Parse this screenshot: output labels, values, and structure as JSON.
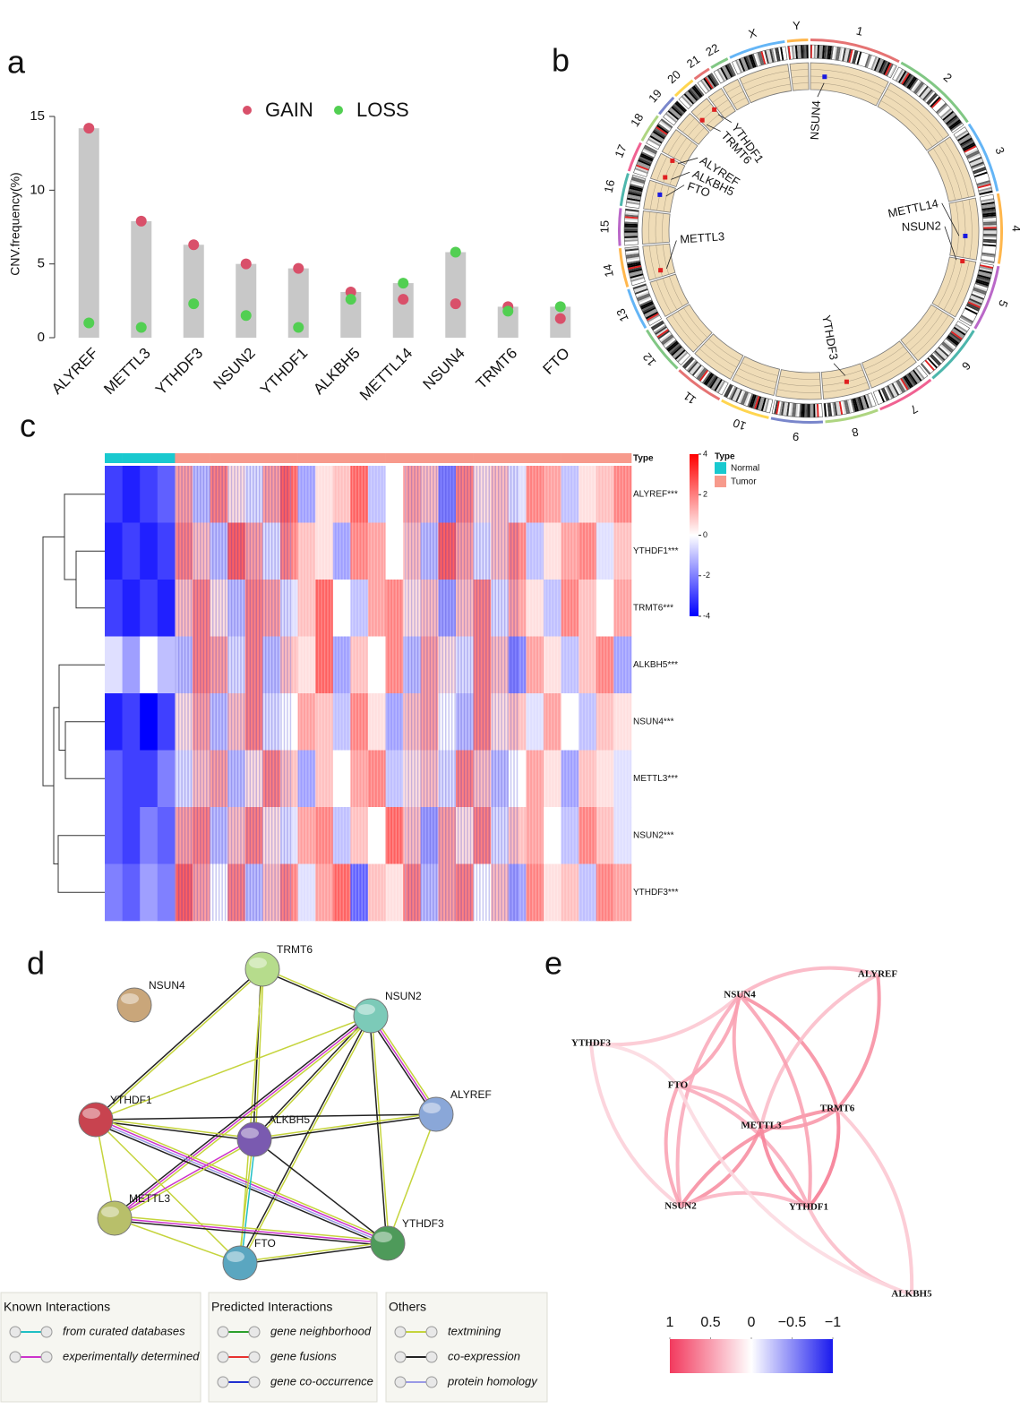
{
  "panel_labels": [
    "a",
    "b",
    "c",
    "d",
    "e"
  ],
  "chart_data": {
    "type": "bar",
    "y_label": "CNV.frequency(%)",
    "categories": [
      "ALYREF",
      "METTL3",
      "YTHDF3",
      "NSUN2",
      "YTHDF1",
      "ALKBH5",
      "METTL14",
      "NSUN4",
      "TRMT6",
      "FTO"
    ],
    "series": [
      {
        "name": "GAIN",
        "color": "#d9506a",
        "values": [
          14.2,
          7.9,
          6.3,
          5.0,
          4.7,
          3.1,
          2.6,
          2.3,
          2.1,
          1.3
        ]
      },
      {
        "name": "LOSS",
        "color": "#52cf52",
        "values": [
          1.0,
          0.7,
          2.3,
          1.5,
          0.7,
          2.6,
          3.7,
          5.8,
          1.8,
          2.1
        ]
      }
    ],
    "bar_color": "#c8c8c8",
    "ylim": [
      0,
      15
    ],
    "yticks": [
      0,
      5,
      10,
      15
    ]
  },
  "circos": {
    "chromosomes": [
      "1",
      "2",
      "3",
      "4",
      "5",
      "6",
      "7",
      "8",
      "9",
      "10",
      "11",
      "12",
      "13",
      "14",
      "15",
      "16",
      "17",
      "18",
      "19",
      "20",
      "21",
      "22",
      "X",
      "Y"
    ],
    "track_color": "#efdcb7",
    "genes": [
      {
        "label": "NSUN4",
        "color": "#1a1ae0"
      },
      {
        "label": "METTL14",
        "color": "#1a1ae0"
      },
      {
        "label": "NSUN2",
        "color": "#e02020"
      },
      {
        "label": "YTHDF3",
        "color": "#e02020"
      },
      {
        "label": "METTL3",
        "color": "#e02020"
      },
      {
        "label": "FTO",
        "color": "#1a1ae0"
      },
      {
        "label": "ALKBH5",
        "color": "#e02020"
      },
      {
        "label": "ALYREF",
        "color": "#e02020"
      },
      {
        "label": "TRMT6",
        "color": "#e02020"
      },
      {
        "label": "YTHDF1",
        "color": "#e02020"
      }
    ]
  },
  "heatmap": {
    "row_labels": [
      "ALYREF***",
      "YTHDF1***",
      "TRMT6***",
      "ALKBH5***",
      "NSUN4***",
      "METTL3***",
      "NSUN2***",
      "YTHDF3***"
    ],
    "annotation_label": "Type",
    "legend_title": "Type",
    "types": [
      {
        "name": "Normal",
        "color": "#19c9cf"
      },
      {
        "name": "Tumor",
        "color": "#f79a8c"
      }
    ],
    "column_types": [
      0,
      0,
      0,
      0,
      1,
      1,
      1,
      1,
      1,
      1,
      1,
      1,
      1,
      1,
      1,
      1,
      1,
      1,
      1,
      1,
      1,
      1,
      1,
      1,
      1,
      1,
      1,
      1,
      1,
      1
    ],
    "matrix": [
      [
        -3,
        -3.5,
        -3,
        -2.5,
        1.5,
        -1,
        2,
        0.5,
        -0.5,
        1.5,
        2.5,
        -1.5,
        0.5,
        1,
        2.5,
        -1,
        0,
        1.5,
        1,
        -2,
        2,
        0.5,
        1,
        -0.5,
        2,
        1.5,
        -1,
        0.5,
        1,
        2
      ],
      [
        -3.5,
        -3,
        -3.5,
        -3,
        2,
        1,
        -1,
        2.5,
        1.5,
        -0.5,
        2,
        1,
        0.5,
        -1.5,
        2,
        1.5,
        0,
        1,
        -1,
        2.5,
        1.5,
        -0.5,
        1,
        2,
        -1,
        0.5,
        1.5,
        2,
        -0.5,
        1
      ],
      [
        -3,
        -3.5,
        -3,
        -3.5,
        1,
        2,
        0.5,
        -1,
        2,
        1.5,
        -0.5,
        1,
        2.5,
        0,
        -1,
        1.5,
        2,
        0.5,
        1,
        -1.5,
        1,
        2,
        -0.5,
        1.5,
        0.5,
        -1,
        2,
        1,
        0,
        1.5
      ],
      [
        -0.5,
        -1.5,
        0,
        -1,
        -1,
        2,
        1.5,
        -0.5,
        2,
        -1,
        1,
        0.5,
        2.5,
        -1.5,
        1,
        0,
        2,
        -1,
        1.5,
        0.5,
        -0.5,
        2,
        1,
        -2,
        1.5,
        0.5,
        -1,
        1,
        2,
        -1.5
      ],
      [
        -3.5,
        -3,
        -4,
        -3,
        0.5,
        1.5,
        -1,
        1,
        2,
        -0.5,
        0,
        1.5,
        1,
        -1,
        2,
        0.5,
        -1.5,
        1,
        1.5,
        0,
        -1,
        2,
        0.5,
        1,
        -0.5,
        1.5,
        0,
        -1,
        1,
        0.5
      ],
      [
        -2.5,
        -3,
        -3,
        -2,
        -0.5,
        1,
        1.5,
        -1,
        0.5,
        2,
        1,
        -1.5,
        1,
        0,
        1.5,
        2,
        -1,
        0.5,
        1,
        -0.5,
        2,
        1,
        -1,
        0,
        1.5,
        0.5,
        -1.5,
        1,
        0.5,
        -0.5
      ],
      [
        -2.5,
        -3,
        -2,
        -2.5,
        1.5,
        2,
        -1,
        1,
        2,
        0.5,
        -0.5,
        1.5,
        2,
        -1,
        1,
        0,
        2.5,
        1,
        -1.5,
        1.5,
        0.5,
        2,
        -0.5,
        1,
        1.5,
        0,
        -1,
        2,
        1,
        -0.5
      ],
      [
        -2,
        -2.5,
        -1.5,
        -2,
        2.5,
        1.5,
        0,
        2,
        -1,
        1,
        2,
        -0.5,
        1.5,
        2.5,
        -2.5,
        1,
        0.5,
        2,
        -1,
        1.5,
        2,
        0,
        1,
        -1.5,
        2,
        0.5,
        1,
        -1,
        2,
        1.5
      ]
    ],
    "colors": [
      "#0000ff",
      "#ffffff",
      "#ff0000"
    ],
    "lim": [
      -4,
      4
    ],
    "ticks": [
      4,
      2,
      0,
      -2,
      -4
    ]
  },
  "network": {
    "nodes": [
      {
        "label": "TRMT6",
        "color": "#b6dc8c"
      },
      {
        "label": "NSUN4",
        "color": "#c9a67a"
      },
      {
        "label": "NSUN2",
        "color": "#7ccab8"
      },
      {
        "label": "YTHDF1",
        "color": "#c8434f"
      },
      {
        "label": "ALKBH5",
        "color": "#7a5ab0"
      },
      {
        "label": "ALYREF",
        "color": "#8aa7d8"
      },
      {
        "label": "METTL3",
        "color": "#b8bf6a"
      },
      {
        "label": "FTO",
        "color": "#5aa6c0"
      },
      {
        "label": "YTHDF3",
        "color": "#4e9a5a"
      }
    ],
    "edges": [
      {
        "ends": [
          0,
          2
        ],
        "kinds": [
          5,
          6
        ]
      },
      {
        "ends": [
          0,
          3
        ],
        "kinds": [
          5,
          6
        ]
      },
      {
        "ends": [
          0,
          4
        ],
        "kinds": [
          5,
          6
        ]
      },
      {
        "ends": [
          0,
          7
        ],
        "kinds": [
          5
        ]
      },
      {
        "ends": [
          2,
          3
        ],
        "kinds": [
          5
        ]
      },
      {
        "ends": [
          2,
          4
        ],
        "kinds": [
          5,
          6
        ]
      },
      {
        "ends": [
          2,
          5
        ],
        "kinds": [
          5,
          1,
          6
        ]
      },
      {
        "ends": [
          2,
          6
        ],
        "kinds": [
          5,
          1,
          6
        ]
      },
      {
        "ends": [
          2,
          7
        ],
        "kinds": [
          5,
          6
        ]
      },
      {
        "ends": [
          2,
          8
        ],
        "kinds": [
          5,
          6
        ]
      },
      {
        "ends": [
          3,
          4
        ],
        "kinds": [
          5,
          6
        ]
      },
      {
        "ends": [
          3,
          5
        ],
        "kinds": [
          6
        ]
      },
      {
        "ends": [
          3,
          6
        ],
        "kinds": [
          5
        ]
      },
      {
        "ends": [
          3,
          7
        ],
        "kinds": [
          5
        ]
      },
      {
        "ends": [
          3,
          8
        ],
        "kinds": [
          5,
          1,
          7,
          6
        ]
      },
      {
        "ends": [
          4,
          5
        ],
        "kinds": [
          5,
          6
        ]
      },
      {
        "ends": [
          4,
          7
        ],
        "kinds": [
          0,
          5
        ]
      },
      {
        "ends": [
          4,
          6
        ],
        "kinds": [
          5,
          1
        ]
      },
      {
        "ends": [
          4,
          8
        ],
        "kinds": [
          6
        ]
      },
      {
        "ends": [
          5,
          8
        ],
        "kinds": [
          5
        ]
      },
      {
        "ends": [
          6,
          8
        ],
        "kinds": [
          5,
          1,
          6
        ]
      },
      {
        "ends": [
          6,
          7
        ],
        "kinds": [
          5
        ]
      },
      {
        "ends": [
          7,
          8
        ],
        "kinds": [
          5,
          6
        ]
      }
    ],
    "legend": [
      {
        "title": "Known Interactions",
        "items": [
          {
            "label": "from curated databases",
            "color": "#1fbfc4"
          },
          {
            "label": "experimentally determined",
            "color": "#cc33cc"
          }
        ]
      },
      {
        "title": "Predicted Interactions",
        "items": [
          {
            "label": "gene neighborhood",
            "color": "#2ca02c"
          },
          {
            "label": "gene fusions",
            "color": "#e8322f"
          },
          {
            "label": "gene co-occurrence",
            "color": "#2030d0"
          }
        ]
      },
      {
        "title": "Others",
        "items": [
          {
            "label": "textmining",
            "color": "#c5d43c"
          },
          {
            "label": "co-expression",
            "color": "#222222"
          },
          {
            "label": "protein homology",
            "color": "#9a9ae6"
          }
        ]
      }
    ]
  },
  "correlation_network": {
    "nodes": [
      "ALYREF",
      "NSUN4",
      "YTHDF3",
      "FTO",
      "METTL3",
      "TRMT6",
      "NSUN2",
      "YTHDF1",
      "ALKBH5"
    ],
    "edges": [
      {
        "ends": [
          1,
          0
        ],
        "value": 0.4
      },
      {
        "ends": [
          2,
          1
        ],
        "value": 0.3
      },
      {
        "ends": [
          2,
          3
        ],
        "value": 0.2
      },
      {
        "ends": [
          2,
          6
        ],
        "value": 0.25
      },
      {
        "ends": [
          1,
          3
        ],
        "value": 0.5
      },
      {
        "ends": [
          1,
          4
        ],
        "value": 0.5
      },
      {
        "ends": [
          1,
          5
        ],
        "value": 0.6
      },
      {
        "ends": [
          1,
          6
        ],
        "value": 0.45
      },
      {
        "ends": [
          0,
          5
        ],
        "value": 0.6
      },
      {
        "ends": [
          0,
          4
        ],
        "value": 0.35
      },
      {
        "ends": [
          3,
          4
        ],
        "value": 0.4
      },
      {
        "ends": [
          3,
          6
        ],
        "value": 0.5
      },
      {
        "ends": [
          3,
          7
        ],
        "value": 0.45
      },
      {
        "ends": [
          4,
          5
        ],
        "value": 0.55
      },
      {
        "ends": [
          4,
          6
        ],
        "value": 0.6
      },
      {
        "ends": [
          4,
          7
        ],
        "value": 0.65
      },
      {
        "ends": [
          5,
          7
        ],
        "value": 0.7
      },
      {
        "ends": [
          5,
          6
        ],
        "value": 0.6
      },
      {
        "ends": [
          6,
          7
        ],
        "value": 0.4
      },
      {
        "ends": [
          7,
          8
        ],
        "value": 0.35
      },
      {
        "ends": [
          5,
          8
        ],
        "value": 0.3
      },
      {
        "ends": [
          3,
          8
        ],
        "value": 0.2
      },
      {
        "ends": [
          1,
          7
        ],
        "value": 0.5
      }
    ],
    "colors": [
      "#1a1aee",
      "#ffffff",
      "#f23a5e"
    ],
    "lim": [
      -1,
      1
    ],
    "ticks": [
      1,
      0.5,
      0,
      {
        "value": -0.5,
        "label": "−0.5"
      },
      {
        "value": -1,
        "label": "−1"
      }
    ]
  }
}
